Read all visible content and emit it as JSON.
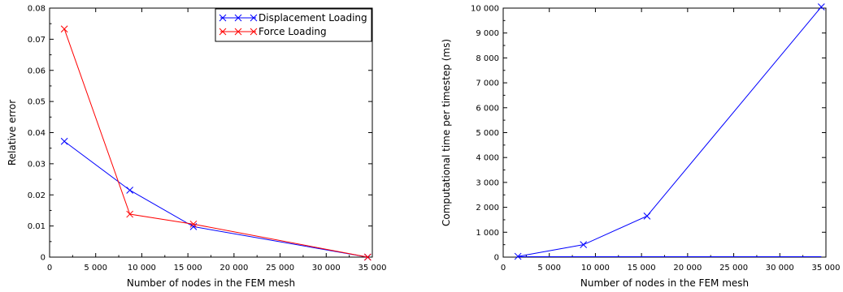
{
  "chart_data": [
    {
      "type": "line",
      "title": "",
      "xlabel": "Number of nodes in the FEM mesh",
      "ylabel": "Relative error",
      "xlim": [
        0,
        35000
      ],
      "ylim": [
        0,
        0.08
      ],
      "xticks": [
        0,
        5000,
        10000,
        15000,
        20000,
        25000,
        30000,
        35000
      ],
      "xtick_labels": [
        "0",
        "5 000",
        "10 000",
        "15 000",
        "20 000",
        "25 000",
        "30 000",
        "35 000"
      ],
      "yticks": [
        0,
        0.01,
        0.02,
        0.03,
        0.04,
        0.05,
        0.06,
        0.07,
        0.08
      ],
      "ytick_labels": [
        "0",
        "0.01",
        "0.02",
        "0.03",
        "0.04",
        "0.05",
        "0.06",
        "0.07",
        "0.08"
      ],
      "grid": false,
      "legend_position": "top-right",
      "series": [
        {
          "name": "Displacement Loading",
          "color": "#0000ff",
          "marker": "x",
          "x": [
            1600,
            8700,
            15600,
            34500
          ],
          "y": [
            0.0372,
            0.0215,
            0.0098,
            0
          ]
        },
        {
          "name": "Force Loading",
          "color": "#ff0000",
          "marker": "x",
          "x": [
            1600,
            8700,
            15600,
            34500
          ],
          "y": [
            0.0733,
            0.0138,
            0.0106,
            0
          ]
        }
      ]
    },
    {
      "type": "line",
      "title": "",
      "xlabel": "Number of nodes in the FEM mesh",
      "ylabel": "Computational time per timestep (ms)",
      "xlim": [
        0,
        35000
      ],
      "ylim": [
        0,
        10000
      ],
      "xticks": [
        0,
        5000,
        10000,
        15000,
        20000,
        25000,
        30000,
        35000
      ],
      "xtick_labels": [
        "0",
        "5 000",
        "10 000",
        "15 000",
        "20 000",
        "25 000",
        "30 000",
        "35 000"
      ],
      "yticks": [
        0,
        1000,
        2000,
        3000,
        4000,
        5000,
        6000,
        7000,
        8000,
        9000,
        10000
      ],
      "ytick_labels": [
        "0",
        "1 000",
        "2 000",
        "3 000",
        "4 000",
        "5 000",
        "6 000",
        "7 000",
        "8 000",
        "9 000",
        "10 000"
      ],
      "grid": false,
      "legend_position": "none",
      "series": [
        {
          "color": "#0000ff",
          "marker": "x",
          "x": [
            1600,
            8700,
            15600,
            34500
          ],
          "y": [
            30,
            500,
            1650,
            10050
          ]
        }
      ],
      "baseline": {
        "color": "#0000ff",
        "x": [
          1600,
          34500
        ],
        "y": [
          0,
          0
        ]
      }
    }
  ]
}
